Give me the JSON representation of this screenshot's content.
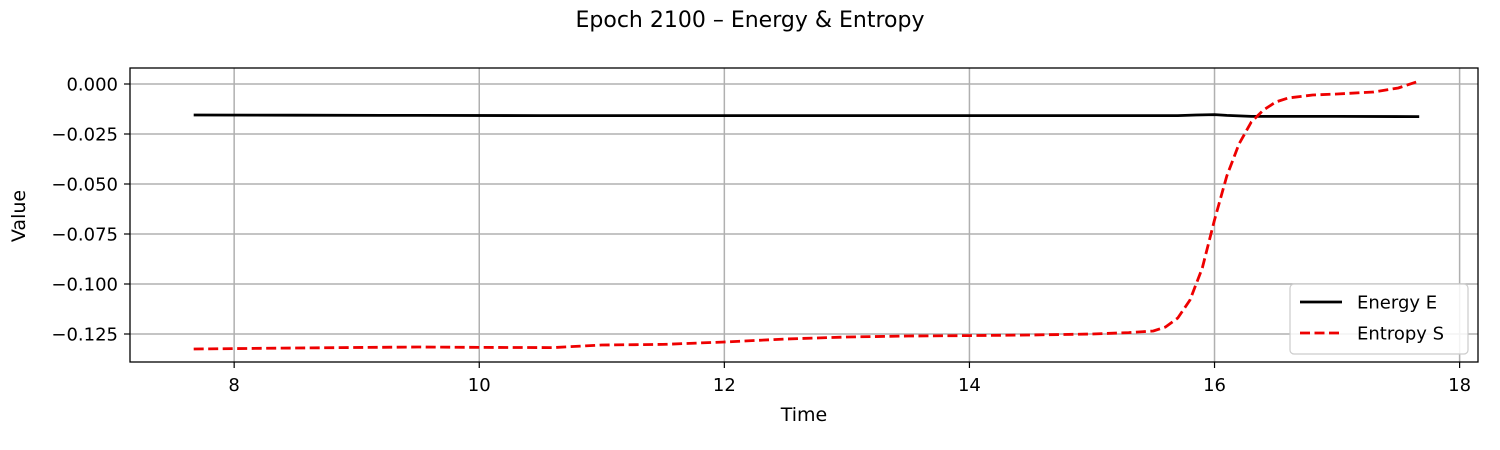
{
  "chart_data": {
    "type": "line",
    "title": "Epoch 2100 – Energy & Entropy",
    "xlabel": "Time",
    "ylabel": "Value",
    "xlim": [
      7.15,
      18.15
    ],
    "ylim": [
      -0.139,
      0.008
    ],
    "xticks": [
      8,
      10,
      12,
      14,
      16,
      18
    ],
    "yticks": [
      0.0,
      -0.025,
      -0.05,
      -0.075,
      -0.1,
      -0.125
    ],
    "ytick_labels": [
      "0.000",
      "−0.025",
      "−0.050",
      "−0.075",
      "−0.100",
      "−0.125"
    ],
    "grid": true,
    "legend_position": "lower-right",
    "series": [
      {
        "name": "Energy E",
        "color": "#000000",
        "dash": "solid",
        "x": [
          7.67,
          8.5,
          9.5,
          10.5,
          11.5,
          12.5,
          13.5,
          14.5,
          15.5,
          15.7,
          15.85,
          16.0,
          16.1,
          16.3,
          16.5,
          17.0,
          17.67
        ],
        "y": [
          -0.0155,
          -0.0156,
          -0.0157,
          -0.0158,
          -0.0158,
          -0.0158,
          -0.0158,
          -0.0158,
          -0.0158,
          -0.0158,
          -0.0155,
          -0.0153,
          -0.0157,
          -0.0162,
          -0.0162,
          -0.0162,
          -0.0163
        ]
      },
      {
        "name": "Entropy S",
        "color": "#ee0000",
        "dash": "dashed",
        "x": [
          7.67,
          8.5,
          9.5,
          10.0,
          10.6,
          11.0,
          11.5,
          12.0,
          12.5,
          13.0,
          13.5,
          14.0,
          14.5,
          15.0,
          15.3,
          15.5,
          15.6,
          15.7,
          15.8,
          15.9,
          16.0,
          16.1,
          16.2,
          16.3,
          16.4,
          16.5,
          16.6,
          16.8,
          17.0,
          17.3,
          17.5,
          17.67
        ],
        "y": [
          -0.1325,
          -0.132,
          -0.1315,
          -0.1317,
          -0.1318,
          -0.1305,
          -0.1302,
          -0.129,
          -0.1275,
          -0.1265,
          -0.126,
          -0.1258,
          -0.1255,
          -0.125,
          -0.1243,
          -0.1235,
          -0.1215,
          -0.117,
          -0.108,
          -0.092,
          -0.068,
          -0.046,
          -0.03,
          -0.019,
          -0.013,
          -0.009,
          -0.007,
          -0.0055,
          -0.005,
          -0.004,
          -0.002,
          0.0015
        ]
      }
    ]
  }
}
